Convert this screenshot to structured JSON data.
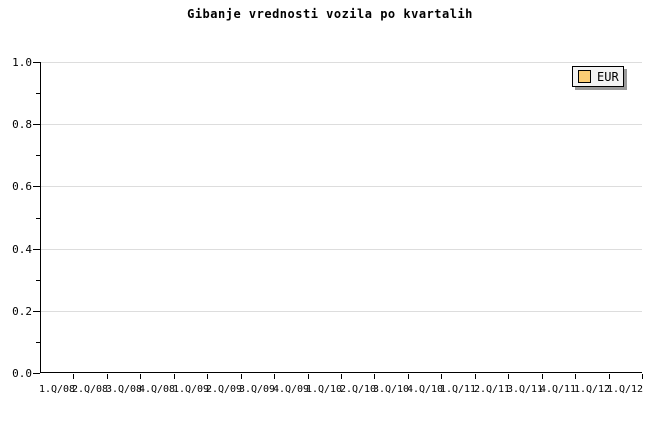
{
  "chart_data": {
    "type": "line",
    "title": "Gibanje vrednosti vozila po kvartalih",
    "categories": [
      "1.Q/08",
      "2.Q/08",
      "3.Q/08",
      "4.Q/08",
      "1.Q/09",
      "2.Q/09",
      "3.Q/09",
      "4.Q/09",
      "1.Q/10",
      "2.Q/10",
      "3.Q/10",
      "4.Q/10",
      "1.Q/11",
      "2.Q/11",
      "3.Q/11",
      "4.Q/11",
      "1.Q/12",
      "1.Q/12"
    ],
    "series": [
      {
        "name": "EUR",
        "color": "#FBCD74",
        "values": []
      }
    ],
    "ylim": [
      0.0,
      1.0
    ],
    "y_tick_labels": [
      "0.0",
      "0.2",
      "0.4",
      "0.6",
      "0.8",
      "1.0"
    ],
    "y_major_step": 0.2,
    "y_minor_step": 0.1,
    "grid": "horizontal gridlines at major y ticks",
    "legend_position": "top-right",
    "plot_is_empty": true
  },
  "colors": {
    "background": "#FFFFFF",
    "axis": "#000000",
    "grid": "#DDDDDD",
    "legend_bg": "#F3F3F3",
    "legend_shadow": "#999999",
    "series_eur": "#FBCD74",
    "text": "#000000"
  }
}
